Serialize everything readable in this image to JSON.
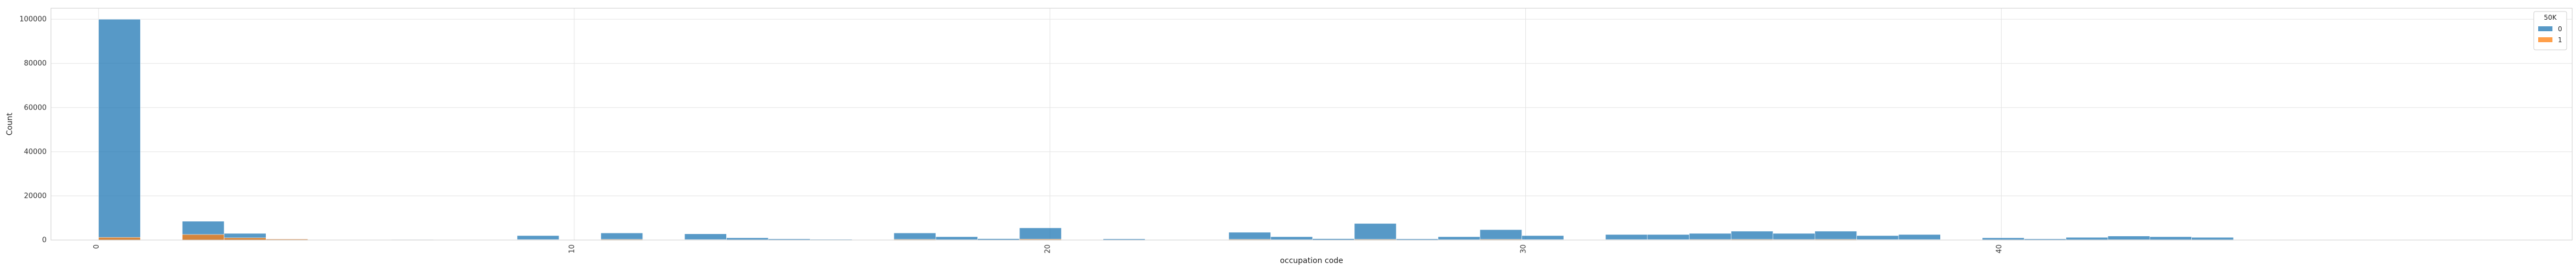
{
  "chart_data": {
    "type": "bar",
    "subtype": "stacked-histogram",
    "title": "",
    "xlabel": "occupation code",
    "ylabel": "Count",
    "xlim": [
      -1,
      52
    ],
    "ylim": [
      0,
      105000
    ],
    "x_ticks": [
      "0",
      "10",
      "20",
      "30",
      "40"
    ],
    "y_ticks": [
      "0",
      "20000",
      "40000",
      "60000",
      "80000",
      "100000"
    ],
    "grid": true,
    "legend": {
      "title": "50K",
      "placement": "top-right"
    },
    "bin_edges": [
      0,
      0.88,
      1.76,
      2.64,
      3.52,
      4.4,
      5.28,
      6.16,
      7.04,
      7.92,
      8.8,
      9.68,
      10.56,
      11.44,
      12.32,
      13.2,
      14.08,
      14.96,
      15.84,
      16.72,
      17.6,
      18.48,
      19.36,
      20.24,
      21.12,
      22.0,
      22.88,
      23.76,
      24.64,
      25.52,
      26.4,
      27.28,
      28.16,
      29.04,
      29.92,
      30.8,
      31.68,
      32.56,
      33.44,
      34.32,
      35.2,
      36.08,
      36.96,
      37.84,
      38.72,
      39.6,
      40.48,
      41.36,
      42.24,
      43.12,
      44.0,
      44.88,
      45.76,
      46.64
    ],
    "series": [
      {
        "name": "0",
        "color": "#1f77b4",
        "values": [
          100000,
          0,
          8500,
          3000,
          500,
          0,
          0,
          300,
          0,
          0,
          2000,
          0,
          3200,
          0,
          2800,
          1000,
          500,
          300,
          0,
          3200,
          1500,
          600,
          5500,
          0,
          500,
          200,
          0,
          3500,
          1500,
          600,
          7500,
          500,
          1500,
          4700,
          2000,
          0,
          2500,
          2500,
          3000,
          4000,
          3000,
          4000,
          2000,
          2500,
          0,
          1000,
          500,
          1200,
          1800,
          1500,
          1200,
          0,
          0
        ]
      },
      {
        "name": "1",
        "color": "#ff7f0e",
        "values": [
          1200,
          0,
          2500,
          1000,
          400,
          0,
          0,
          150,
          0,
          0,
          200,
          0,
          300,
          0,
          200,
          100,
          50,
          30,
          0,
          300,
          150,
          60,
          400,
          0,
          50,
          20,
          0,
          300,
          150,
          60,
          300,
          50,
          150,
          300,
          200,
          0,
          200,
          200,
          250,
          300,
          250,
          300,
          200,
          200,
          0,
          100,
          50,
          100,
          150,
          120,
          100,
          0,
          0
        ]
      }
    ]
  }
}
